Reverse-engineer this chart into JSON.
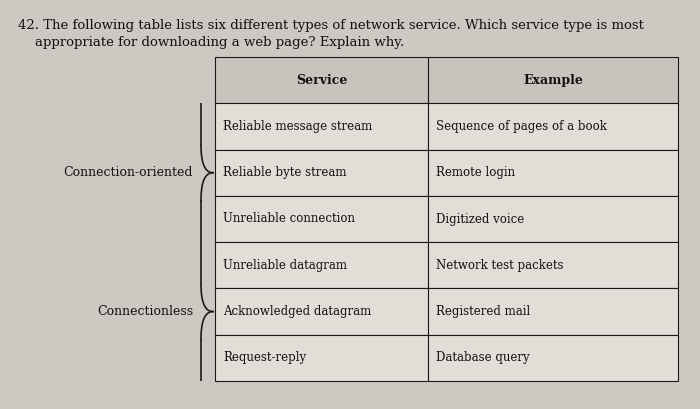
{
  "question_number": "42.",
  "question_text_line1": "42. The following table lists six different types of network service. Which service type is most",
  "question_text_line2": "    appropriate for downloading a web page? Explain why.",
  "col_headers": [
    "Service",
    "Example"
  ],
  "rows": [
    [
      "Reliable message stream",
      "Sequence of pages of a book"
    ],
    [
      "Reliable byte stream",
      "Remote login"
    ],
    [
      "Unreliable connection",
      "Digitized voice"
    ],
    [
      "Unreliable datagram",
      "Network test packets"
    ],
    [
      "Acknowledged datagram",
      "Registered mail"
    ],
    [
      "Request-reply",
      "Database query"
    ]
  ],
  "group_labels": [
    {
      "label": "Connection-oriented",
      "rows": [
        0,
        1,
        2
      ]
    },
    {
      "label": "Connectionless",
      "rows": [
        3,
        4,
        5
      ]
    }
  ],
  "bg_color": "#cdc9c2",
  "cell_bg": "#e2ddd7",
  "header_bg": "#c8c3bc",
  "border_color": "#1a1a1a",
  "text_color": "#111111",
  "question_fontsize": 9.5,
  "header_fontsize": 9,
  "cell_fontsize": 8.5,
  "label_fontsize": 9
}
